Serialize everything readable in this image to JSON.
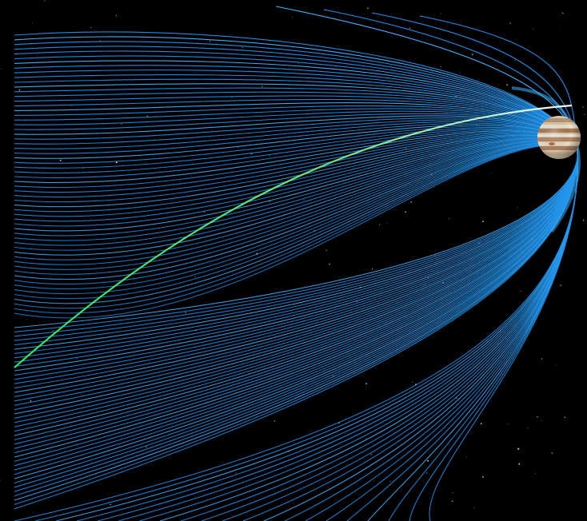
{
  "scene": {
    "background_color": "#000000",
    "orbit_color": "#1e8fe8",
    "orbit_highlight_color": "#3fb2ff",
    "current_orbit_start_color": "#2ee26a",
    "current_orbit_end_color": "#f4fbff",
    "planet_name": "jupiter",
    "orbit_count": 64
  }
}
